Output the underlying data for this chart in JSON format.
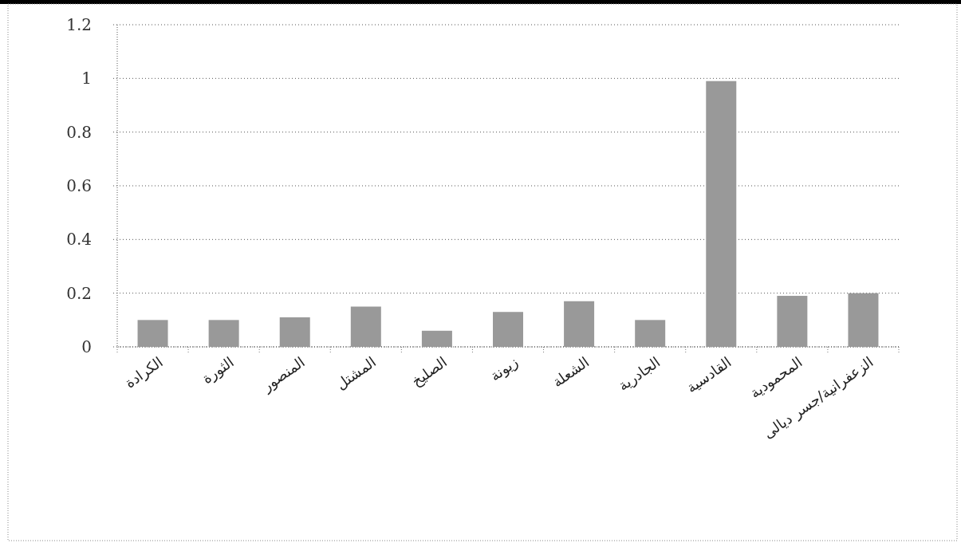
{
  "chart_data": {
    "type": "bar",
    "categories": [
      "الكرادة",
      "الثورة",
      "المنصور",
      "المشتل",
      "الصليخ",
      "زيونة",
      "الشعلة",
      "الجادرية",
      "القادسية",
      "المحمودية",
      "الزعفرانية/جسر ديالى"
    ],
    "values": [
      0.1,
      0.1,
      0.11,
      0.15,
      0.06,
      0.13,
      0.17,
      0.1,
      0.99,
      0.19,
      0.2
    ],
    "color": "#999999",
    "ylim": [
      0,
      1.2
    ],
    "yticks": [
      0,
      0.2,
      0.4,
      0.6,
      0.8,
      1,
      1.2
    ],
    "grid": "y"
  }
}
